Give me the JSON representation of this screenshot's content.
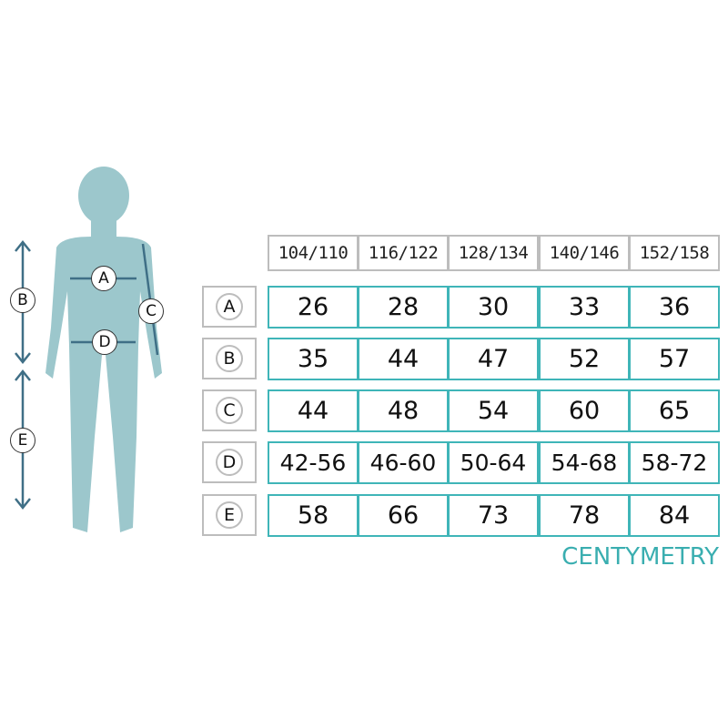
{
  "colors": {
    "figure": "#9cc7cc",
    "arrow": "#3f6f86",
    "accent": "#3fb5b8",
    "header_border": "#bdbdbd"
  },
  "figure_labels": {
    "A": "A",
    "B": "B",
    "C": "C",
    "D": "D",
    "E": "E"
  },
  "table": {
    "columns": [
      "104/110",
      "116/122",
      "128/134",
      "140/146",
      "152/158"
    ],
    "rows": [
      {
        "label": "A",
        "values": [
          "26",
          "28",
          "30",
          "33",
          "36"
        ]
      },
      {
        "label": "B",
        "values": [
          "35",
          "44",
          "47",
          "52",
          "57"
        ]
      },
      {
        "label": "C",
        "values": [
          "44",
          "48",
          "54",
          "60",
          "65"
        ]
      },
      {
        "label": "D",
        "values": [
          "42-56",
          "46-60",
          "50-64",
          "54-68",
          "58-72"
        ]
      },
      {
        "label": "E",
        "values": [
          "58",
          "66",
          "73",
          "78",
          "84"
        ]
      }
    ]
  },
  "unit": "CENTYMETRY"
}
